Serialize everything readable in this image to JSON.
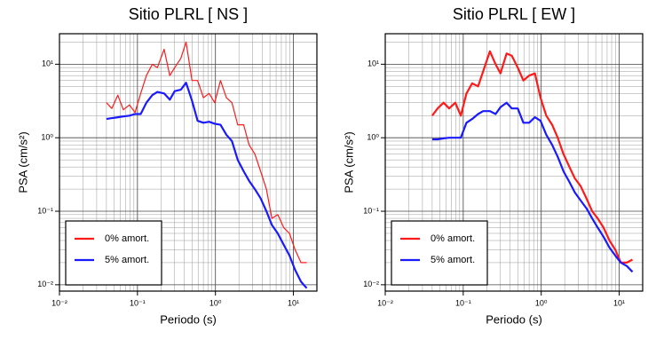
{
  "chart_data": [
    {
      "type": "line",
      "title": "Sitio PLRL [ NS ]",
      "xlabel": "Periodo (s)",
      "ylabel": "PSA (cm/s²)",
      "log_x": true,
      "log_y": true,
      "grid": true,
      "xlim": [
        0.01,
        20
      ],
      "ylim": [
        0.0082,
        26
      ],
      "xticks": [
        {
          "value": 0.01,
          "label": "10⁻²"
        },
        {
          "value": 0.1,
          "label": "10⁻¹"
        },
        {
          "value": 1,
          "label": "10⁰"
        },
        {
          "value": 10,
          "label": "10¹"
        }
      ],
      "yticks": [
        {
          "value": 0.01,
          "label": "10⁻²"
        },
        {
          "value": 0.1,
          "label": "10⁻¹"
        },
        {
          "value": 1,
          "label": "10⁰"
        },
        {
          "value": 10,
          "label": "10¹"
        }
      ],
      "xminor": [
        0.02,
        0.03,
        0.04,
        0.05,
        0.06,
        0.07,
        0.08,
        0.09,
        0.2,
        0.3,
        0.4,
        0.5,
        0.6,
        0.7,
        0.8,
        0.9,
        2,
        3,
        4,
        5,
        6,
        7,
        8,
        9
      ],
      "yminor": [
        0.02,
        0.03,
        0.04,
        0.05,
        0.06,
        0.07,
        0.08,
        0.09,
        0.2,
        0.3,
        0.4,
        0.5,
        0.6,
        0.7,
        0.8,
        0.9,
        2,
        3,
        4,
        5,
        6,
        7,
        8,
        9,
        20
      ],
      "legend": "lower left",
      "x": [
        0.04,
        0.047,
        0.056,
        0.066,
        0.079,
        0.093,
        0.11,
        0.13,
        0.155,
        0.18,
        0.22,
        0.26,
        0.3,
        0.36,
        0.42,
        0.5,
        0.59,
        0.7,
        0.83,
        0.98,
        1.16,
        1.38,
        1.63,
        1.93,
        2.3,
        2.7,
        3.2,
        3.8,
        4.5,
        5.3,
        6.3,
        7.5,
        8.9,
        10.5,
        12.5,
        14.8
      ],
      "series": [
        {
          "name": "0% amort.",
          "color": "#ff1a1a",
          "width": 1.2,
          "values": [
            3.0,
            2.5,
            3.8,
            2.4,
            2.8,
            2.2,
            4,
            7,
            10,
            9,
            16,
            7,
            9,
            12,
            20,
            6,
            6,
            3.5,
            4,
            3,
            6,
            3.5,
            3,
            1.5,
            1.5,
            0.8,
            0.6,
            0.35,
            0.2,
            0.08,
            0.09,
            0.06,
            0.05,
            0.03,
            0.02,
            0.02
          ]
        },
        {
          "name": "5% amort.",
          "color": "#1a1aff",
          "width": 2.2,
          "values": [
            1.8,
            1.85,
            1.9,
            1.95,
            2.0,
            2.1,
            2.1,
            3.0,
            3.8,
            4.2,
            4.0,
            3.3,
            4.3,
            4.5,
            5.6,
            3.2,
            1.7,
            1.6,
            1.65,
            1.55,
            1.5,
            1.1,
            0.9,
            0.5,
            0.35,
            0.26,
            0.2,
            0.15,
            0.1,
            0.065,
            0.05,
            0.035,
            0.025,
            0.016,
            0.011,
            0.009
          ]
        }
      ]
    },
    {
      "type": "line",
      "title": "Sitio PLRL [ EW ]",
      "xlabel": "Periodo (s)",
      "ylabel": "PSA (cm/s²)",
      "log_x": true,
      "log_y": true,
      "grid": true,
      "xlim": [
        0.01,
        20
      ],
      "ylim": [
        0.0082,
        26
      ],
      "xticks": [
        {
          "value": 0.01,
          "label": "10⁻²"
        },
        {
          "value": 0.1,
          "label": "10⁻¹"
        },
        {
          "value": 1,
          "label": "10⁰"
        },
        {
          "value": 10,
          "label": "10¹"
        }
      ],
      "yticks": [
        {
          "value": 0.01,
          "label": "10⁻²"
        },
        {
          "value": 0.1,
          "label": "10⁻¹"
        },
        {
          "value": 1,
          "label": "10⁰"
        },
        {
          "value": 10,
          "label": "10¹"
        }
      ],
      "xminor": [
        0.02,
        0.03,
        0.04,
        0.05,
        0.06,
        0.07,
        0.08,
        0.09,
        0.2,
        0.3,
        0.4,
        0.5,
        0.6,
        0.7,
        0.8,
        0.9,
        2,
        3,
        4,
        5,
        6,
        7,
        8,
        9
      ],
      "yminor": [
        0.02,
        0.03,
        0.04,
        0.05,
        0.06,
        0.07,
        0.08,
        0.09,
        0.2,
        0.3,
        0.4,
        0.5,
        0.6,
        0.7,
        0.8,
        0.9,
        2,
        3,
        4,
        5,
        6,
        7,
        8,
        9,
        20
      ],
      "legend": "lower left",
      "x": [
        0.04,
        0.047,
        0.056,
        0.066,
        0.079,
        0.093,
        0.11,
        0.13,
        0.155,
        0.18,
        0.22,
        0.26,
        0.3,
        0.36,
        0.42,
        0.5,
        0.59,
        0.7,
        0.83,
        0.98,
        1.16,
        1.38,
        1.63,
        1.93,
        2.3,
        2.7,
        3.2,
        3.8,
        4.5,
        5.3,
        6.3,
        7.5,
        8.9,
        10.5,
        12.5,
        14.8
      ],
      "series": [
        {
          "name": "0% amort.",
          "color": "#ff1a1a",
          "width": 2.2,
          "values": [
            2.0,
            2.5,
            3.0,
            2.5,
            3.0,
            2.0,
            4.0,
            5.5,
            5.0,
            8.0,
            15,
            10,
            7.5,
            14,
            13,
            9,
            6,
            7,
            7.5,
            3.5,
            2,
            1.5,
            1,
            0.6,
            0.4,
            0.28,
            0.22,
            0.15,
            0.1,
            0.08,
            0.06,
            0.04,
            0.03,
            0.02,
            0.02,
            0.022
          ]
        },
        {
          "name": "5% amort.",
          "color": "#1a1aff",
          "width": 2.2,
          "values": [
            0.95,
            0.95,
            0.98,
            1.0,
            1.0,
            1.0,
            1.6,
            1.8,
            2.1,
            2.3,
            2.3,
            2.1,
            2.6,
            3.0,
            2.5,
            2.5,
            1.6,
            1.6,
            1.9,
            1.7,
            1.1,
            0.8,
            0.55,
            0.35,
            0.25,
            0.18,
            0.14,
            0.11,
            0.08,
            0.06,
            0.045,
            0.032,
            0.025,
            0.02,
            0.018,
            0.015
          ]
        }
      ]
    }
  ]
}
